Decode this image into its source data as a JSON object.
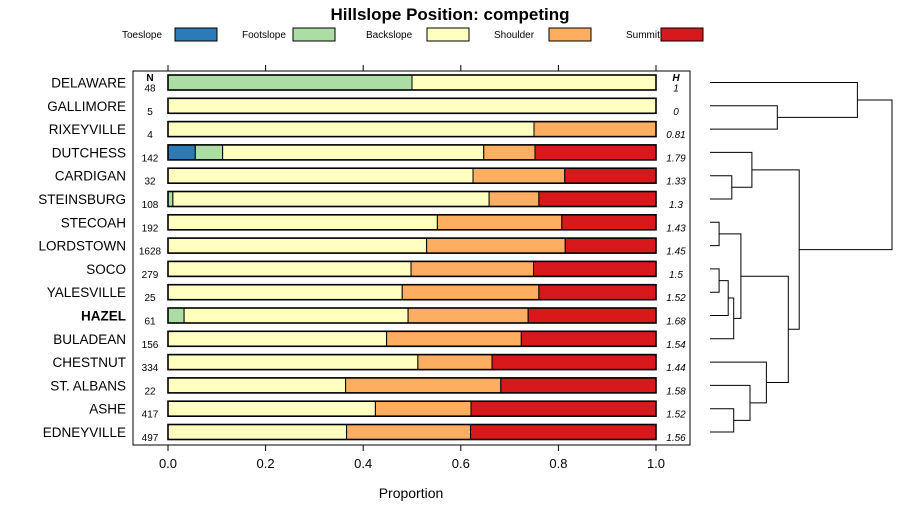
{
  "chart_data": {
    "type": "bar",
    "orientation": "horizontal",
    "stacked": true,
    "title": "Hillslope Position: competing",
    "xlabel": "Proportion",
    "xlim": [
      0,
      1
    ],
    "x_ticks": [
      "0.0",
      "0.2",
      "0.4",
      "0.6",
      "0.8",
      "1.0"
    ],
    "legend": [
      {
        "name": "Toeslope",
        "color": "#2c7bb6"
      },
      {
        "name": "Footslope",
        "color": "#abdda4"
      },
      {
        "name": "Backslope",
        "color": "#ffffbf"
      },
      {
        "name": "Shoulder",
        "color": "#fdae61"
      },
      {
        "name": "Summit",
        "color": "#d7191c"
      }
    ],
    "n_header": "N",
    "h_header": "H",
    "categories": [
      "DELAWARE",
      "GALLIMORE",
      "RIXEYVILLE",
      "DUTCHESS",
      "CARDIGAN",
      "STEINSBURG",
      "STECOAH",
      "LORDSTOWN",
      "SOCO",
      "YALESVILLE",
      "HAZEL",
      "BULADEAN",
      "CHESTNUT",
      "ST. ALBANS",
      "ASHE",
      "EDNEYVILLE"
    ],
    "highlight": "HAZEL",
    "n": [
      "48",
      "5",
      "4",
      "142",
      "32",
      "108",
      "192",
      "1628",
      "279",
      "25",
      "61",
      "156",
      "334",
      "22",
      "417",
      "497"
    ],
    "h": [
      "1",
      "0",
      "0.81",
      "1.79",
      "1.33",
      "1.3",
      "1.43",
      "1.45",
      "1.5",
      "1.52",
      "1.68",
      "1.54",
      "1.44",
      "1.58",
      "1.52",
      "1.56"
    ],
    "series": [
      {
        "name": "Toeslope",
        "values": [
          0,
          0,
          0,
          0.056,
          0,
          0,
          0,
          0,
          0,
          0,
          0,
          0,
          0,
          0,
          0,
          0
        ]
      },
      {
        "name": "Footslope",
        "values": [
          0.5,
          0,
          0,
          0.056,
          0,
          0.01,
          0,
          0,
          0,
          0,
          0.033,
          0,
          0,
          0,
          0,
          0
        ]
      },
      {
        "name": "Backslope",
        "values": [
          0.5,
          1.0,
          0.75,
          0.535,
          0.625,
          0.648,
          0.552,
          0.53,
          0.498,
          0.48,
          0.459,
          0.448,
          0.512,
          0.364,
          0.425,
          0.366
        ]
      },
      {
        "name": "Shoulder",
        "values": [
          0,
          0,
          0.25,
          0.105,
          0.188,
          0.102,
          0.255,
          0.284,
          0.251,
          0.28,
          0.246,
          0.276,
          0.152,
          0.318,
          0.196,
          0.254
        ]
      },
      {
        "name": "Summit",
        "values": [
          0,
          0,
          0,
          0.248,
          0.187,
          0.24,
          0.193,
          0.186,
          0.251,
          0.24,
          0.262,
          0.276,
          0.336,
          0.318,
          0.379,
          0.38
        ]
      }
    ],
    "dendrogram": {
      "leaf_order": [
        "DELAWARE",
        "GALLIMORE",
        "RIXEYVILLE",
        "DUTCHESS",
        "CARDIGAN",
        "STEINSBURG",
        "STECOAH",
        "LORDSTOWN",
        "SOCO",
        "YALESVILLE",
        "HAZEL",
        "BULADEAN",
        "CHESTNUT",
        "ST. ALBANS",
        "ASHE",
        "EDNEYVILLE"
      ],
      "merges": [
        {
          "left": "GALLIMORE",
          "right": "RIXEYVILLE",
          "height": 0.37
        },
        {
          "left": "CARDIGAN",
          "right": "STEINSBURG",
          "height": 0.12
        },
        {
          "left": "STECOAH",
          "right": "LORDSTOWN",
          "height": 0.05
        },
        {
          "left": "SOCO",
          "right": "YALESVILLE",
          "height": 0.05
        },
        {
          "left": "ASHE",
          "right": "EDNEYVILLE",
          "height": 0.13
        },
        {
          "left": "SOCO+YALESVILLE",
          "right": "HAZEL",
          "height": 0.1
        },
        {
          "left": "SOCO+YALESVILLE+HAZEL",
          "right": "BULADEAN",
          "height": 0.13
        },
        {
          "left": "STECOAH+LORDSTOWN",
          "right": "SOCO+YALESVILLE+HAZEL+BULADEAN",
          "height": 0.17
        },
        {
          "left": "ST. ALBANS",
          "right": "ASHE+EDNEYVILLE",
          "height": 0.22
        },
        {
          "left": "DUTCHESS",
          "right": "CARDIGAN+STEINSBURG",
          "height": 0.23
        },
        {
          "left": "CHESTNUT",
          "right": "ST. ALBANS+ASHE+EDNEYVILLE",
          "height": 0.31
        },
        {
          "left": "STECOAH+LORDSTOWN+SOCO+YALESVILLE+HAZEL+BULADEAN",
          "right": "CHESTNUT+ST. ALBANS+ASHE+EDNEYVILLE",
          "height": 0.43
        },
        {
          "left": "DUTCHESS+CARDIGAN+STEINSBURG",
          "right": "STECOAH+LORDSTOWN+SOCO+YALESVILLE+HAZEL+BULADEAN+CHESTNUT+ST. ALBANS+ASHE+EDNEYVILLE",
          "height": 0.49
        },
        {
          "left": "DELAWARE",
          "right": "GALLIMORE+RIXEYVILLE",
          "height": 0.81
        },
        {
          "left": "DELAWARE+GALLIMORE+RIXEYVILLE",
          "right": "DUTCHESS+CARDIGAN+STEINSBURG+STECOAH+LORDSTOWN+SOCO+YALESVILLE+HAZEL+BULADEAN+CHESTNUT+ST. ALBANS+ASHE+EDNEYVILLE",
          "height": 1.0
        }
      ]
    }
  }
}
